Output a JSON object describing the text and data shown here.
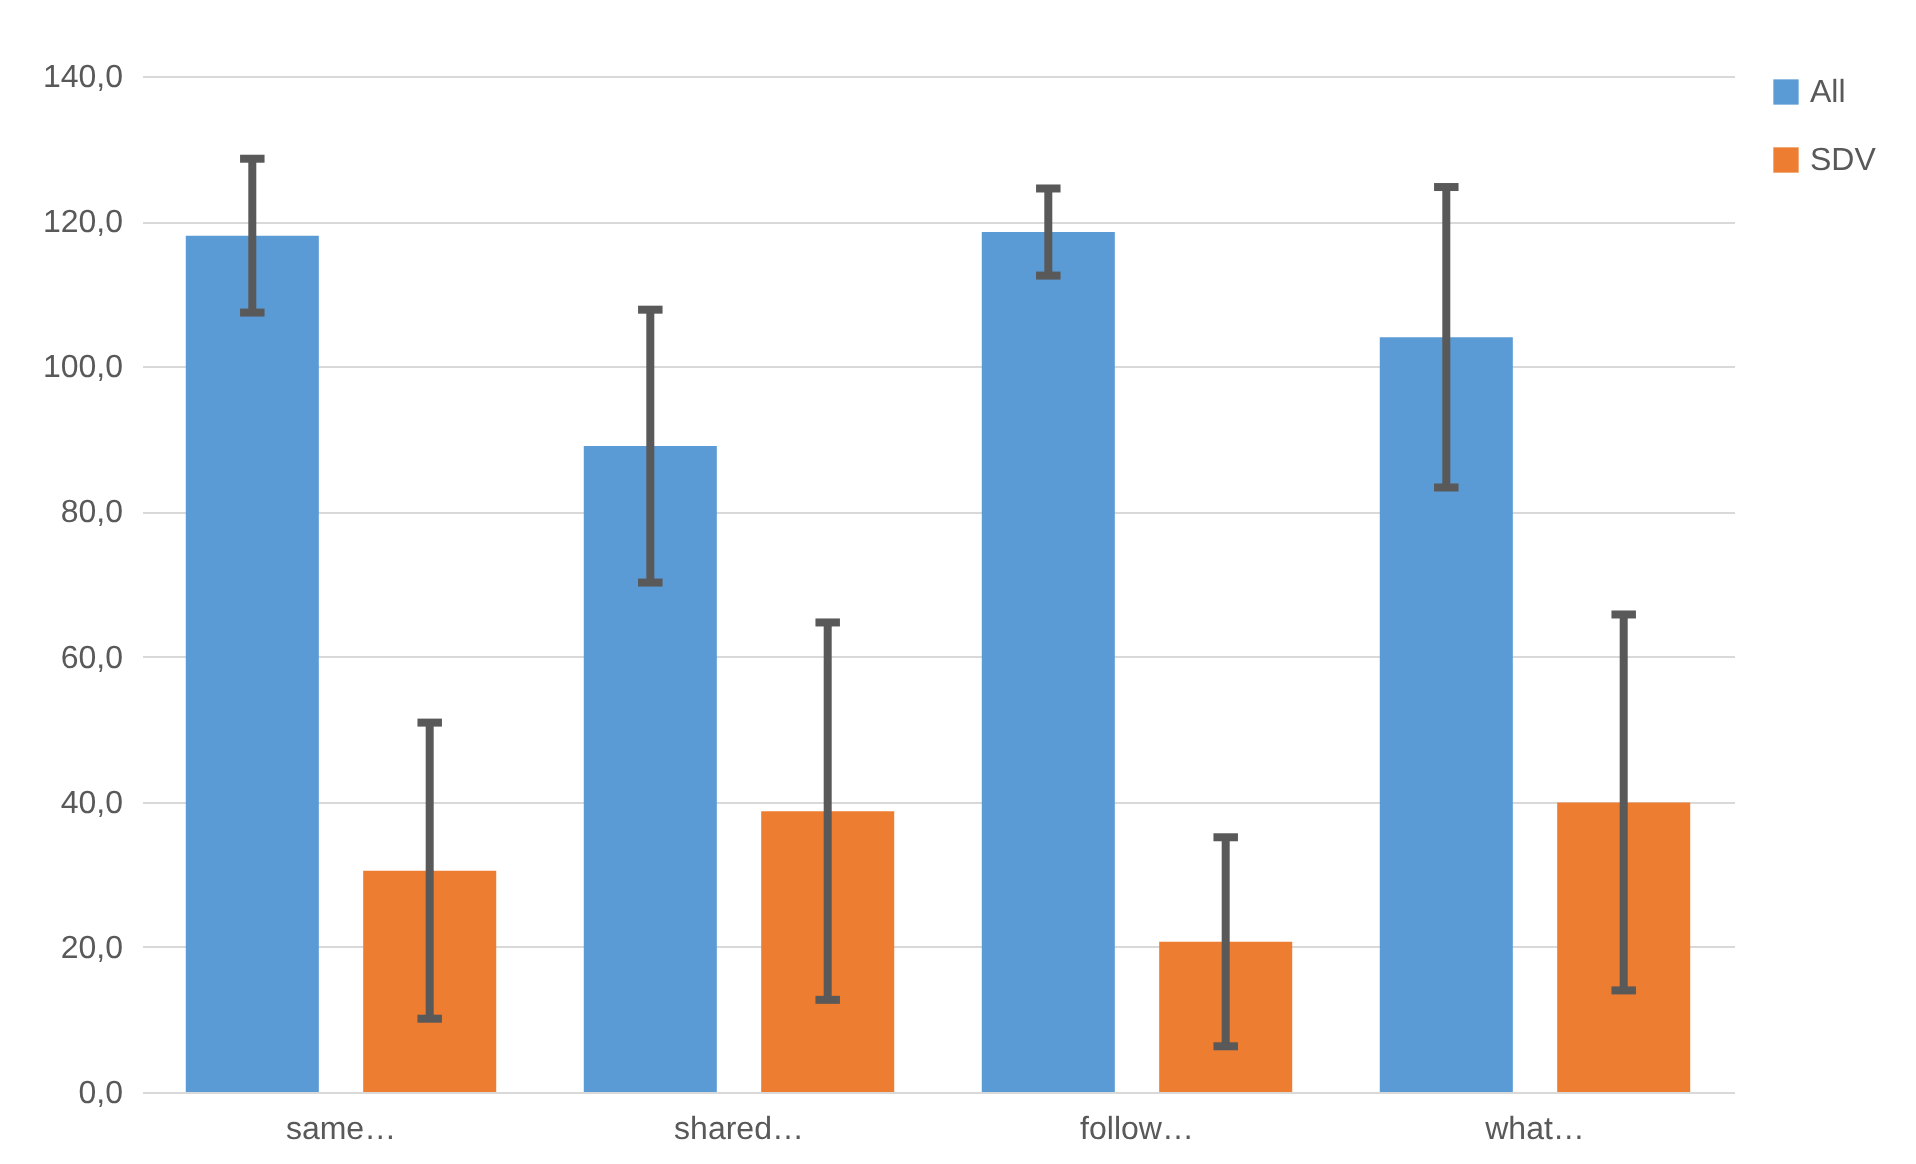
{
  "chart_data": {
    "type": "bar",
    "categories": [
      "same…",
      "shared…",
      "follow…",
      "what…"
    ],
    "series": [
      {
        "name": "All",
        "color": "#5b9bd5",
        "values": [
          118,
          89,
          118.5,
          104
        ],
        "errors": [
          10.6,
          18.8,
          6,
          20.7
        ]
      },
      {
        "name": "SDV",
        "color": "#ed7d31",
        "values": [
          30.5,
          38.7,
          20.7,
          39.9
        ],
        "errors": [
          20.4,
          26,
          14.4,
          25.9
        ]
      }
    ],
    "ylim": [
      0,
      140
    ],
    "yticks": [
      {
        "value": 0,
        "label": "0,0"
      },
      {
        "value": 20,
        "label": "20,0"
      },
      {
        "value": 40,
        "label": "40,0"
      },
      {
        "value": 60,
        "label": "60,0"
      },
      {
        "value": 80,
        "label": "80,0"
      },
      {
        "value": 100,
        "label": "100,0"
      },
      {
        "value": 120,
        "label": "120,0"
      },
      {
        "value": 140,
        "label": "140,0"
      }
    ],
    "grid": "y",
    "legend": "right"
  }
}
